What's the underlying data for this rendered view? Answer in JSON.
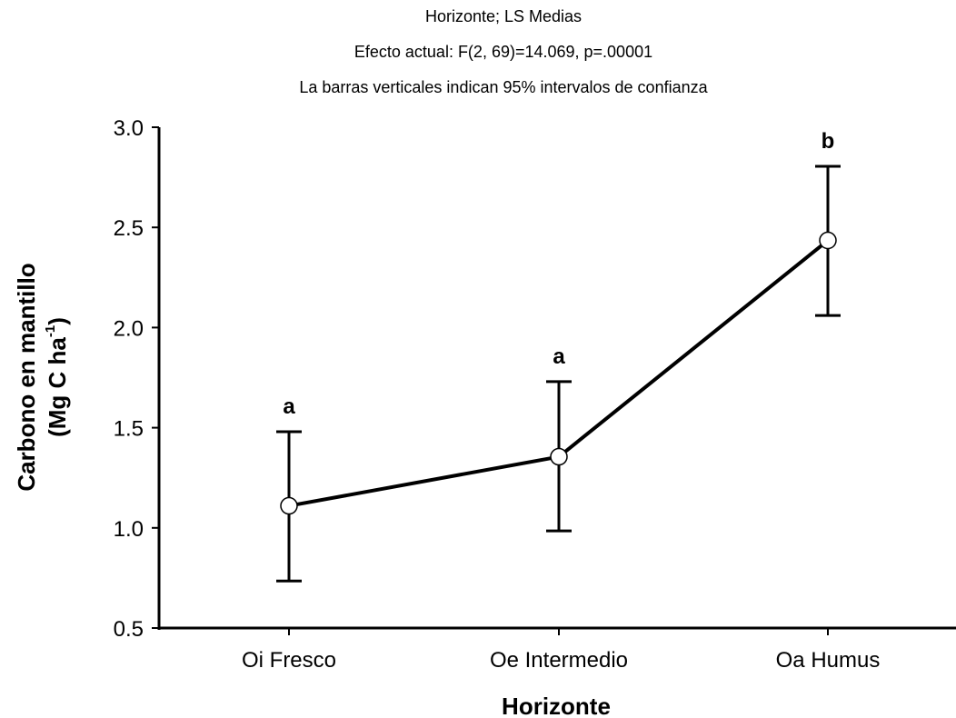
{
  "chart_data": {
    "type": "line",
    "title": "Horizonte; LS Medias",
    "subtitle": "Efecto actual: F(2, 69)=14.069, p=.00001",
    "note": "La barras verticales indican 95% intervalos de confianza",
    "xlabel": "Horizonte",
    "ylabel_line1": "Carbono en mantillo",
    "ylabel_line2_main": "(Mg C ha",
    "ylabel_line2_sup": "-1",
    "ylabel_line2_end": ")",
    "categories": [
      "Oi Fresco",
      "Oe Intermedio",
      "Oa Humus"
    ],
    "values": [
      1.11,
      1.355,
      2.435
    ],
    "ci_lower": [
      0.735,
      0.985,
      2.06
    ],
    "ci_upper": [
      1.48,
      1.73,
      2.805
    ],
    "significance_letters": [
      "a",
      "a",
      "b"
    ],
    "ylim": [
      0.5,
      3.0
    ],
    "yticks": [
      0.5,
      1.0,
      1.5,
      2.0,
      2.5,
      3.0
    ],
    "ytick_labels": [
      "0.5",
      "1.0",
      "1.5",
      "2.0",
      "2.5",
      "3.0"
    ],
    "grid": false,
    "colors": {
      "line": "#000000",
      "marker_fill": "#ffffff"
    }
  }
}
